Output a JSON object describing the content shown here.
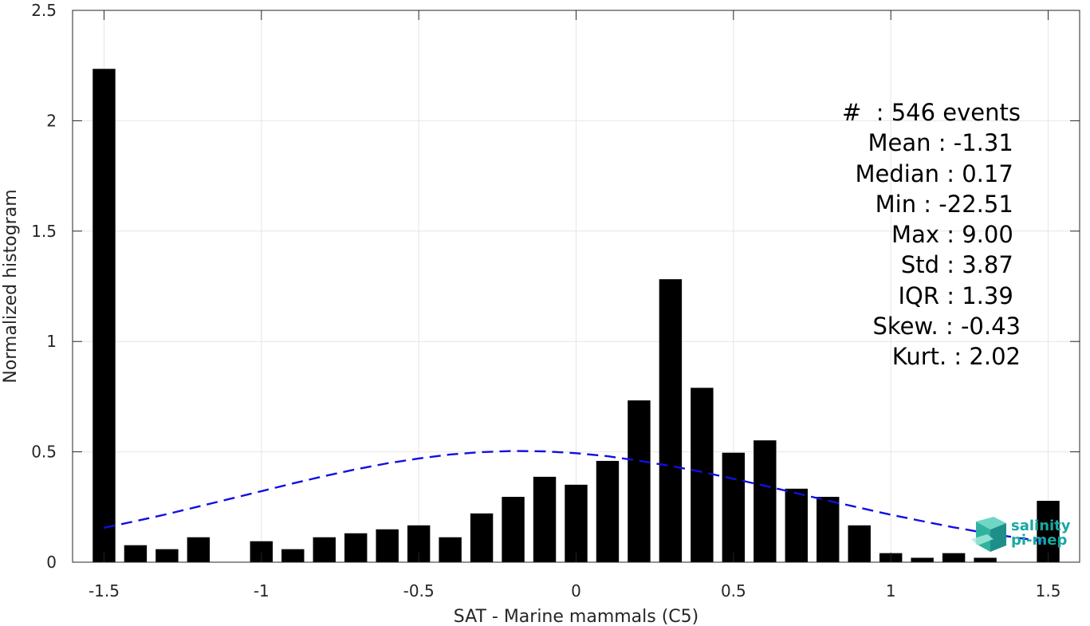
{
  "chart_data": {
    "type": "bar",
    "xlabel": "SAT - Marine mammals (C5)",
    "ylabel": "Normalized histogram",
    "xlim": [
      -1.6,
      1.6
    ],
    "ylim": [
      0,
      2.5
    ],
    "xticks": [
      -1.5,
      -1,
      -0.5,
      0,
      0.5,
      1,
      1.5
    ],
    "xtick_labels": [
      "-1.5",
      "-1",
      "-0.5",
      "0",
      "0.5",
      "1",
      "1.5"
    ],
    "yticks": [
      0,
      0.5,
      1,
      1.5,
      2,
      2.5
    ],
    "ytick_labels": [
      "0",
      "0.5",
      "1",
      "1.5",
      "2",
      "2.5"
    ],
    "grid": true,
    "bar_color": "#000000",
    "bars": {
      "x": [
        -1.5,
        -1.4,
        -1.3,
        -1.2,
        -1.1,
        -1.0,
        -0.9,
        -0.8,
        -0.7,
        -0.6,
        -0.5,
        -0.4,
        -0.3,
        -0.2,
        -0.1,
        0.0,
        0.1,
        0.2,
        0.3,
        0.4,
        0.5,
        0.6,
        0.7,
        0.8,
        0.9,
        1.0,
        1.1,
        1.2,
        1.3,
        1.4,
        1.5
      ],
      "values": [
        2.235,
        0.077,
        0.059,
        0.113,
        0.0,
        0.095,
        0.059,
        0.113,
        0.131,
        0.149,
        0.167,
        0.113,
        0.221,
        0.296,
        0.387,
        0.351,
        0.459,
        0.733,
        1.282,
        0.79,
        0.496,
        0.552,
        0.333,
        0.296,
        0.167,
        0.041,
        0.02,
        0.041,
        0.02,
        0.0,
        0.278
      ]
    },
    "fit_curve": {
      "style": "dashed",
      "color": "#1010e0",
      "x": [
        -1.5,
        -1.4,
        -1.3,
        -1.2,
        -1.1,
        -1.0,
        -0.9,
        -0.8,
        -0.7,
        -0.6,
        -0.5,
        -0.4,
        -0.3,
        -0.2,
        -0.1,
        0.0,
        0.1,
        0.2,
        0.3,
        0.4,
        0.5,
        0.6,
        0.7,
        0.8,
        0.9,
        1.0,
        1.1,
        1.2,
        1.3,
        1.4,
        1.5
      ],
      "y": [
        0.156,
        0.186,
        0.218,
        0.252,
        0.287,
        0.322,
        0.357,
        0.39,
        0.421,
        0.448,
        0.47,
        0.488,
        0.499,
        0.504,
        0.502,
        0.494,
        0.48,
        0.46,
        0.436,
        0.409,
        0.378,
        0.346,
        0.313,
        0.279,
        0.247,
        0.215,
        0.186,
        0.158,
        0.133,
        0.111,
        0.092
      ]
    }
  },
  "stats": [
    "#  : 546 events",
    "Mean : -1.31 ",
    "Median : 0.17 ",
    "Min : -22.51 ",
    "Max : 9.00 ",
    "Std : 3.87 ",
    "IQR : 1.39 ",
    "Skew. : -0.43",
    "Kurt. : 2.02"
  ],
  "logo": {
    "line1": "salinity",
    "line2": "pi-mep",
    "color": "#19a8a0"
  }
}
